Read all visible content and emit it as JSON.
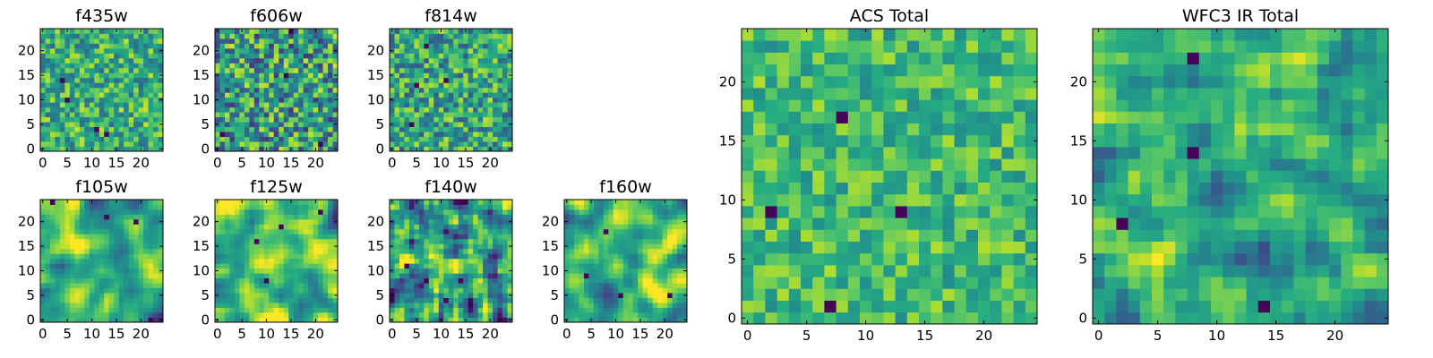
{
  "chart_data": [
    {
      "type": "heatmap",
      "title": "f435w",
      "grid_size": 25,
      "xlim": [
        0,
        24
      ],
      "ylim": [
        0,
        24
      ],
      "xticks": [
        0,
        5,
        10,
        15,
        20
      ],
      "yticks": [
        0,
        5,
        10,
        15,
        20
      ],
      "colormap": "viridis",
      "seed": 11,
      "smooth": 0,
      "level": 0.62,
      "spread": 0.16
    },
    {
      "type": "heatmap",
      "title": "f606w",
      "grid_size": 25,
      "xlim": [
        0,
        24
      ],
      "ylim": [
        0,
        24
      ],
      "xticks": [
        0,
        5,
        10,
        15,
        20
      ],
      "yticks": [
        0,
        5,
        10,
        15,
        20
      ],
      "colormap": "viridis",
      "seed": 23,
      "smooth": 0,
      "level": 0.55,
      "spread": 0.22
    },
    {
      "type": "heatmap",
      "title": "f814w",
      "grid_size": 25,
      "xlim": [
        0,
        24
      ],
      "ylim": [
        0,
        24
      ],
      "xticks": [
        0,
        5,
        10,
        15,
        20
      ],
      "yticks": [
        0,
        5,
        10,
        15,
        20
      ],
      "colormap": "viridis",
      "seed": 37,
      "smooth": 0,
      "level": 0.6,
      "spread": 0.18
    },
    {
      "type": "heatmap",
      "title": "f105w",
      "grid_size": 25,
      "xlim": [
        0,
        24
      ],
      "ylim": [
        0,
        24
      ],
      "xticks": [
        0,
        5,
        10,
        15,
        20
      ],
      "yticks": [
        0,
        5,
        10,
        15,
        20
      ],
      "colormap": "viridis",
      "seed": 41,
      "smooth": 2,
      "level": 0.64,
      "spread": 0.16
    },
    {
      "type": "heatmap",
      "title": "f125w",
      "grid_size": 25,
      "xlim": [
        0,
        24
      ],
      "ylim": [
        0,
        24
      ],
      "xticks": [
        0,
        5,
        10,
        15,
        20
      ],
      "yticks": [
        0,
        5,
        10,
        15,
        20
      ],
      "colormap": "viridis",
      "seed": 53,
      "smooth": 2,
      "level": 0.7,
      "spread": 0.17
    },
    {
      "type": "heatmap",
      "title": "f140w",
      "grid_size": 25,
      "xlim": [
        0,
        24
      ],
      "ylim": [
        0,
        24
      ],
      "xticks": [
        0,
        5,
        10,
        15,
        20
      ],
      "yticks": [
        0,
        5,
        10,
        15,
        20
      ],
      "colormap": "viridis",
      "seed": 67,
      "smooth": 1,
      "level": 0.56,
      "spread": 0.22
    },
    {
      "type": "heatmap",
      "title": "f160w",
      "grid_size": 25,
      "xlim": [
        0,
        24
      ],
      "ylim": [
        0,
        24
      ],
      "xticks": [
        0,
        5,
        10,
        15,
        20
      ],
      "yticks": [
        0,
        5,
        10,
        15,
        20
      ],
      "colormap": "viridis",
      "seed": 79,
      "smooth": 2,
      "level": 0.66,
      "spread": 0.17
    },
    {
      "type": "heatmap",
      "title": "ACS Total",
      "grid_size": 25,
      "xlim": [
        0,
        24
      ],
      "ylim": [
        0,
        24
      ],
      "xticks": [
        0,
        5,
        10,
        15,
        20
      ],
      "yticks": [
        0,
        5,
        10,
        15,
        20
      ],
      "colormap": "viridis",
      "seed": 97,
      "smooth": 0,
      "level": 0.68,
      "spread": 0.12
    },
    {
      "type": "heatmap",
      "title": "WFC3 IR Total",
      "grid_size": 25,
      "xlim": [
        0,
        24
      ],
      "ylim": [
        0,
        24
      ],
      "xticks": [
        0,
        5,
        10,
        15,
        20
      ],
      "yticks": [
        0,
        5,
        10,
        15,
        20
      ],
      "colormap": "viridis",
      "seed": 131,
      "smooth": 1,
      "level": 0.62,
      "spread": 0.13
    }
  ]
}
